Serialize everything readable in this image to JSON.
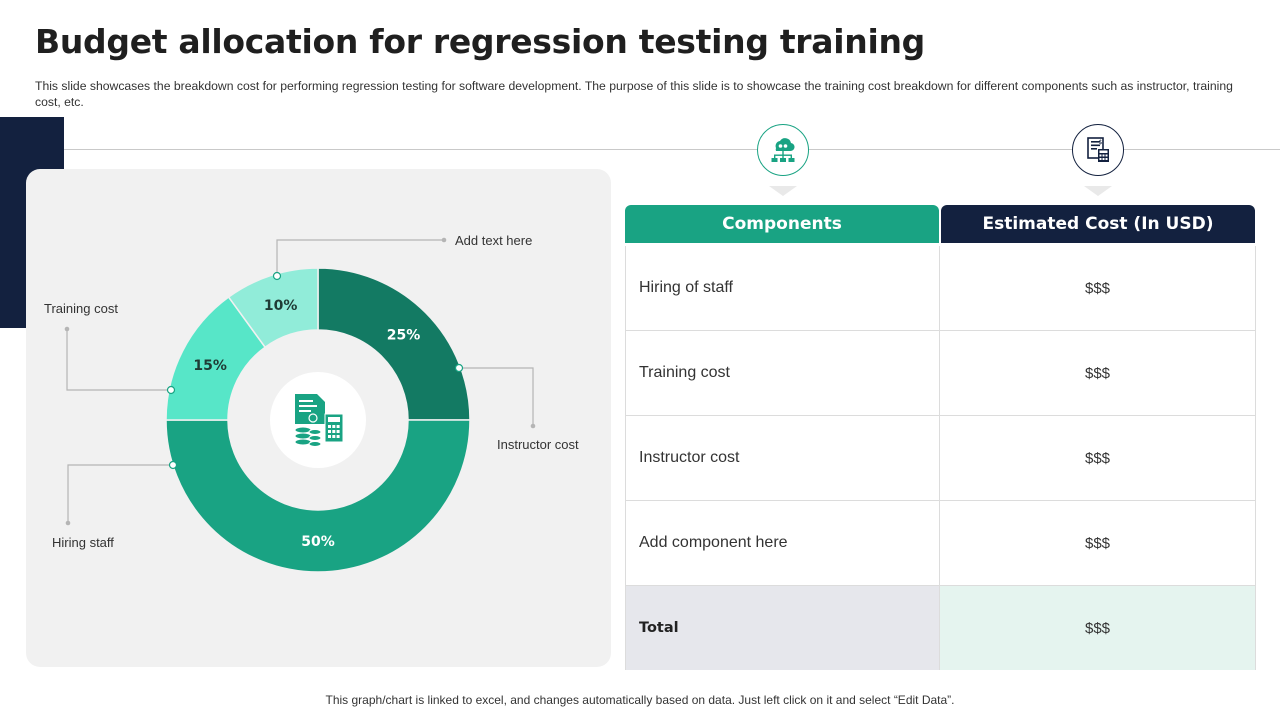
{
  "title": "Budget allocation for regression testing training",
  "subtitle": "This slide showcases the breakdown cost for performing regression testing for software development. The purpose of this slide is to showcase the training cost breakdown for different components such as instructor, training cost, etc.",
  "chart_data": {
    "type": "pie",
    "variant": "donut",
    "center_icon": "budget-calculator-icon",
    "slices": [
      {
        "label": "Instructor cost",
        "value": 25,
        "display": "25%",
        "color": "#137a63"
      },
      {
        "label": "Hiring staff",
        "value": 50,
        "display": "50%",
        "color": "#19a383"
      },
      {
        "label": "Training cost",
        "value": 15,
        "display": "15%",
        "color": "#57e6c8"
      },
      {
        "label": "Add text here",
        "value": 10,
        "display": "10%",
        "color": "#91ecd9"
      }
    ]
  },
  "table": {
    "header_icons": [
      "cloud-network-icon",
      "invoice-calculator-icon"
    ],
    "headers": [
      "Components",
      "Estimated Cost (In USD)"
    ],
    "rows": [
      {
        "component": "Hiring of staff",
        "cost": "$$$"
      },
      {
        "component": "Training cost",
        "cost": "$$$"
      },
      {
        "component": "Instructor cost",
        "cost": "$$$"
      },
      {
        "component": "Add component here",
        "cost": "$$$"
      }
    ],
    "total": {
      "label": "Total",
      "cost": "$$$"
    }
  },
  "footnote": "This graph/chart is linked to excel, and changes automatically based on data. Just left click on it and select “Edit Data”."
}
